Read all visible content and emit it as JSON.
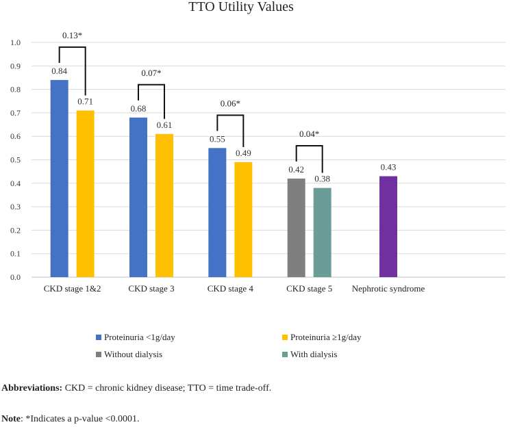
{
  "chart_data": {
    "type": "bar",
    "title": "TTO Utility Values",
    "ylim": [
      0,
      1.0
    ],
    "yticks": [
      "0.0",
      "0.1",
      "0.2",
      "0.3",
      "0.4",
      "0.5",
      "0.6",
      "0.7",
      "0.8",
      "0.9",
      "1.0"
    ],
    "grid": true,
    "groups": [
      {
        "category": "CKD stage 1&2",
        "bars": [
          {
            "series": "Proteinuria <1g/day",
            "value": 0.84,
            "label": "0.84"
          },
          {
            "series": "Proteinuria ≥1g/day",
            "value": 0.71,
            "label": "0.71"
          }
        ],
        "bracket": "0.13*"
      },
      {
        "category": "CKD stage 3",
        "bars": [
          {
            "series": "Proteinuria <1g/day",
            "value": 0.68,
            "label": "0.68"
          },
          {
            "series": "Proteinuria ≥1g/day",
            "value": 0.61,
            "label": "0.61"
          }
        ],
        "bracket": "0.07*"
      },
      {
        "category": "CKD stage 4",
        "bars": [
          {
            "series": "Proteinuria <1g/day",
            "value": 0.55,
            "label": "0.55"
          },
          {
            "series": "Proteinuria ≥1g/day",
            "value": 0.49,
            "label": "0.49"
          }
        ],
        "bracket": "0.06*"
      },
      {
        "category": "CKD stage 5",
        "bars": [
          {
            "series": "Without dialysis",
            "value": 0.42,
            "label": "0.42"
          },
          {
            "series": "With dialysis",
            "value": 0.38,
            "label": "0.38"
          }
        ],
        "bracket": "0.04*"
      },
      {
        "category": "Nephrotic syndrome",
        "bars": [
          {
            "series": "Nephrotic syndrome",
            "value": 0.43,
            "label": "0.43"
          }
        ],
        "bracket": null
      }
    ],
    "colors": {
      "Proteinuria <1g/day": "#4472C4",
      "Proteinuria ≥1g/day": "#FFC000",
      "Without dialysis": "#7F7F7F",
      "With dialysis": "#6A9C98",
      "Nephrotic syndrome": "#7030A0"
    }
  },
  "legend": [
    {
      "label": "Proteinuria <1g/day",
      "color": "#4472C4"
    },
    {
      "label": "Proteinuria ≥1g/day",
      "color": "#FFC000"
    },
    {
      "label": "Without dialysis",
      "color": "#7F7F7F"
    },
    {
      "label": "With dialysis",
      "color": "#6A9C98"
    }
  ],
  "notes": {
    "abbreviations_label": "Abbreviations:",
    "abbreviations_text": " CKD = chronic kidney disease; TTO = time trade-off.",
    "note_label": "Note",
    "note_text": ": *Indicates a p-value <0.0001."
  }
}
